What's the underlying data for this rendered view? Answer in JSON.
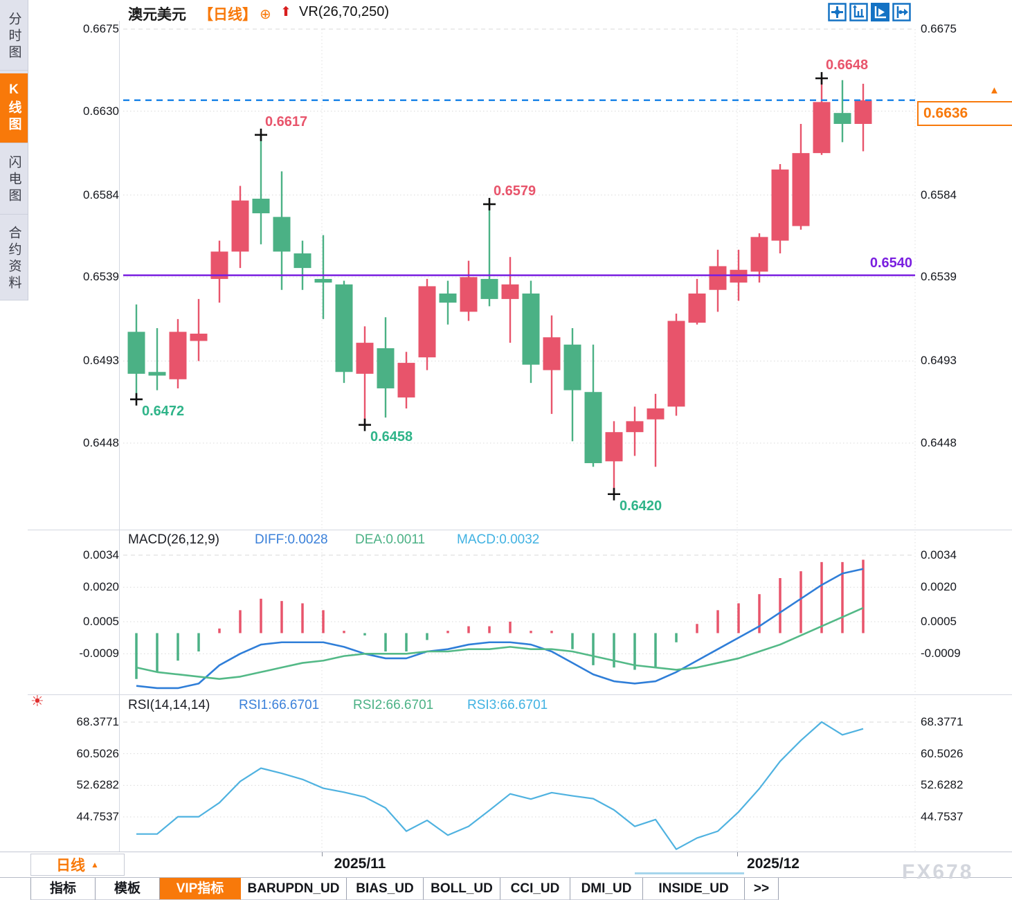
{
  "header": {
    "symbol": "澳元美元",
    "period_tag": "【日线】",
    "plus_icon": "⊕",
    "arrow_icon": "⬆",
    "vr_indicator": "VR(26,70,250)"
  },
  "sidebar": {
    "items": [
      {
        "label": "分时图",
        "active": false
      },
      {
        "label": "K线图",
        "active": true
      },
      {
        "label": "闪电图",
        "active": false
      },
      {
        "label": "合约资料",
        "active": false
      }
    ]
  },
  "toolbar": {
    "icons": [
      {
        "name": "pan-icon",
        "active": false
      },
      {
        "name": "axis-scale-icon",
        "active": false
      },
      {
        "name": "auto-scroll-icon",
        "active": true
      },
      {
        "name": "jump-latest-icon",
        "active": false
      }
    ]
  },
  "price_box": {
    "value": "0.6636",
    "arrow": "▲"
  },
  "hline_label": "0.6540",
  "macd_panel": {
    "title": "MACD(26,12,9)",
    "diff_label": "DIFF:0.0028",
    "dea_label": "DEA:0.0011",
    "macd_label": "MACD:0.0032"
  },
  "rsi_panel": {
    "sun_icon": "☀",
    "title": "RSI(14,14,14)",
    "rsi1_label": "RSI1:66.6701",
    "rsi2_label": "RSI2:66.6701",
    "rsi3_label": "RSI3:66.6701"
  },
  "time_axis": {
    "period_label": "日线",
    "period_arrow": "▲",
    "months": [
      "2025/11",
      "2025/12"
    ]
  },
  "bottom_tabs": [
    {
      "label": "指标",
      "active": false
    },
    {
      "label": "模板",
      "active": false
    },
    {
      "label": "VIP指标",
      "active": true
    },
    {
      "label": "BARUPDN_UD",
      "active": false
    },
    {
      "label": "BIAS_UD",
      "active": false
    },
    {
      "label": "BOLL_UD",
      "active": false
    },
    {
      "label": "CCI_UD",
      "active": false
    },
    {
      "label": "DMI_UD",
      "active": false
    },
    {
      "label": "INSIDE_UD",
      "active": false
    },
    {
      "label": ">>",
      "active": false
    }
  ],
  "watermark": "FX678",
  "colors": {
    "up_candle": "#e8546b",
    "down_candle": "#4bb185",
    "diff_line": "#2f7ed8",
    "dea_line": "#53b987",
    "rsi_line": "#4fb2e0",
    "current_price_line": "#1e86e8",
    "horizontal_level_line": "#7a1fe0",
    "accent_orange": "#f8790a",
    "annotation_red": "#e8546b",
    "annotation_green": "#2fb489",
    "icon_blue": "#1472c4",
    "grid": "#dcdcdc",
    "cross_marker": "#111111"
  },
  "chart_data": {
    "type": "candlestick",
    "symbol": "澳元美元 (AUD/USD)",
    "timeframe": "日线 (daily)",
    "month_labels": [
      "2025/11",
      "2025/12"
    ],
    "month_boundary_candles": [
      9,
      29
    ],
    "price_axis_ticks": [
      {
        "label": "0.6675",
        "value": 0.6675
      },
      {
        "label": "0.6630",
        "value": 0.663
      },
      {
        "label": "0.6584",
        "value": 0.6584
      },
      {
        "label": "0.6539",
        "value": 0.6539
      },
      {
        "label": "0.6493",
        "value": 0.6493
      },
      {
        "label": "0.6448",
        "value": 0.6448
      }
    ],
    "candles_ohlc": [
      [
        0.6509,
        0.6524,
        0.6472,
        0.6486
      ],
      [
        0.6487,
        0.6511,
        0.6477,
        0.6485
      ],
      [
        0.6483,
        0.6516,
        0.6478,
        0.6509
      ],
      [
        0.6504,
        0.6527,
        0.6493,
        0.6508
      ],
      [
        0.6538,
        0.6559,
        0.6525,
        0.6553
      ],
      [
        0.6553,
        0.6589,
        0.6544,
        0.6581
      ],
      [
        0.6582,
        0.6617,
        0.6557,
        0.6574
      ],
      [
        0.6572,
        0.6597,
        0.6532,
        0.6553
      ],
      [
        0.6552,
        0.6559,
        0.6532,
        0.6544
      ],
      [
        0.6538,
        0.6562,
        0.6516,
        0.6536
      ],
      [
        0.6535,
        0.6537,
        0.6481,
        0.6487
      ],
      [
        0.6486,
        0.6512,
        0.6458,
        0.6503
      ],
      [
        0.65,
        0.6517,
        0.6462,
        0.6478
      ],
      [
        0.6473,
        0.6498,
        0.6467,
        0.6492
      ],
      [
        0.6495,
        0.6538,
        0.6488,
        0.6534
      ],
      [
        0.653,
        0.6537,
        0.6513,
        0.6525
      ],
      [
        0.652,
        0.6548,
        0.6515,
        0.6539
      ],
      [
        0.6538,
        0.6579,
        0.6523,
        0.6527
      ],
      [
        0.6527,
        0.655,
        0.6503,
        0.6535
      ],
      [
        0.653,
        0.6537,
        0.6481,
        0.6491
      ],
      [
        0.6488,
        0.6518,
        0.6464,
        0.6506
      ],
      [
        0.6502,
        0.6511,
        0.6449,
        0.6477
      ],
      [
        0.6476,
        0.6502,
        0.6435,
        0.6437
      ],
      [
        0.6438,
        0.646,
        0.642,
        0.6454
      ],
      [
        0.6454,
        0.6468,
        0.6441,
        0.646
      ],
      [
        0.6461,
        0.6475,
        0.6435,
        0.6467
      ],
      [
        0.6468,
        0.6519,
        0.6463,
        0.6515
      ],
      [
        0.6514,
        0.6538,
        0.6513,
        0.653
      ],
      [
        0.6532,
        0.6554,
        0.652,
        0.6545
      ],
      [
        0.6536,
        0.6554,
        0.6526,
        0.6543
      ],
      [
        0.6542,
        0.6563,
        0.6536,
        0.6561
      ],
      [
        0.6559,
        0.6601,
        0.6552,
        0.6598
      ],
      [
        0.6567,
        0.6623,
        0.6565,
        0.6607
      ],
      [
        0.6607,
        0.6648,
        0.6606,
        0.6635
      ],
      [
        0.6629,
        0.6647,
        0.6613,
        0.6623
      ],
      [
        0.6623,
        0.6645,
        0.6608,
        0.6636
      ]
    ],
    "levels": {
      "current_price": 0.6636,
      "horizontal_line": 0.654
    },
    "swings": [
      {
        "candle": 0,
        "price": 0.6472,
        "side": "low",
        "label": "0.6472"
      },
      {
        "candle": 6,
        "price": 0.6617,
        "side": "high",
        "label": "0.6617"
      },
      {
        "candle": 11,
        "price": 0.6458,
        "side": "low",
        "label": "0.6458"
      },
      {
        "candle": 17,
        "price": 0.6579,
        "side": "high",
        "label": "0.6579"
      },
      {
        "candle": 23,
        "price": 0.642,
        "side": "low",
        "label": "0.6420"
      },
      {
        "candle": 33,
        "price": 0.6648,
        "side": "high",
        "label": "0.6648"
      }
    ],
    "macd": {
      "params": "MACD(26,12,9)",
      "axis_ticks": [
        {
          "label": "0.0034",
          "value": 0.0034
        },
        {
          "label": "0.0020",
          "value": 0.002
        },
        {
          "label": "0.0005",
          "value": 0.0005
        },
        {
          "label": "-0.0009",
          "value": -0.0009
        }
      ],
      "histogram": [
        -0.002,
        -0.0017,
        -0.0012,
        -0.0008,
        0.0002,
        0.001,
        0.0015,
        0.0014,
        0.0013,
        0.001,
        0.0001,
        -0.0001,
        -0.0008,
        -0.0008,
        -0.0003,
        0.0001,
        0.0003,
        0.0003,
        0.0005,
        0.0001,
        0.0001,
        -0.0007,
        -0.0014,
        -0.0015,
        -0.0016,
        -0.0015,
        -0.0004,
        0.0004,
        0.001,
        0.0013,
        0.0017,
        0.0024,
        0.0027,
        0.0031,
        0.0031,
        0.0032
      ],
      "diff": [
        -0.0023,
        -0.0024,
        -0.0024,
        -0.0022,
        -0.0014,
        -0.0009,
        -0.0005,
        -0.0004,
        -0.0004,
        -0.0004,
        -0.0006,
        -0.0009,
        -0.0011,
        -0.0011,
        -0.0008,
        -0.0007,
        -0.0005,
        -0.0004,
        -0.0004,
        -0.0005,
        -0.0008,
        -0.0013,
        -0.0018,
        -0.0021,
        -0.0022,
        -0.0021,
        -0.0017,
        -0.0012,
        -0.0007,
        -0.0002,
        0.0003,
        0.0009,
        0.0015,
        0.0021,
        0.0026,
        0.0028
      ],
      "dea": [
        -0.0015,
        -0.0017,
        -0.0018,
        -0.0019,
        -0.002,
        -0.0019,
        -0.0017,
        -0.0015,
        -0.0013,
        -0.0012,
        -0.001,
        -0.0009,
        -0.0009,
        -0.0009,
        -0.0008,
        -0.0008,
        -0.0007,
        -0.0007,
        -0.0006,
        -0.0007,
        -0.0007,
        -0.0008,
        -0.001,
        -0.0012,
        -0.0014,
        -0.0015,
        -0.0016,
        -0.0015,
        -0.0013,
        -0.0011,
        -0.0008,
        -0.0005,
        -0.0001,
        0.0003,
        0.0007,
        0.0011
      ],
      "current": {
        "diff": 0.0028,
        "dea": 0.0011,
        "macd": 0.0032
      }
    },
    "rsi": {
      "params": "RSI(14,14,14)",
      "axis_ticks": [
        {
          "label": "68.3771",
          "value": 68.3771
        },
        {
          "label": "60.5026",
          "value": 60.5026
        },
        {
          "label": "52.6282",
          "value": 52.6282
        },
        {
          "label": "44.7537",
          "value": 44.7537
        }
      ],
      "values": [
        40.5,
        40.5,
        44.8,
        44.8,
        48.3,
        53.6,
        56.9,
        55.6,
        54.1,
        51.9,
        50.9,
        49.7,
        47.0,
        41.2,
        43.9,
        40.2,
        42.4,
        46.4,
        50.5,
        49.2,
        50.8,
        50.0,
        49.3,
        46.5,
        42.4,
        44.1,
        36.7,
        39.5,
        41.2,
        46.0,
        51.8,
        58.6,
        63.8,
        68.4,
        65.2,
        66.7
      ],
      "current": {
        "rsi1": 66.6701,
        "rsi2": 66.6701,
        "rsi3": 66.6701
      }
    }
  }
}
